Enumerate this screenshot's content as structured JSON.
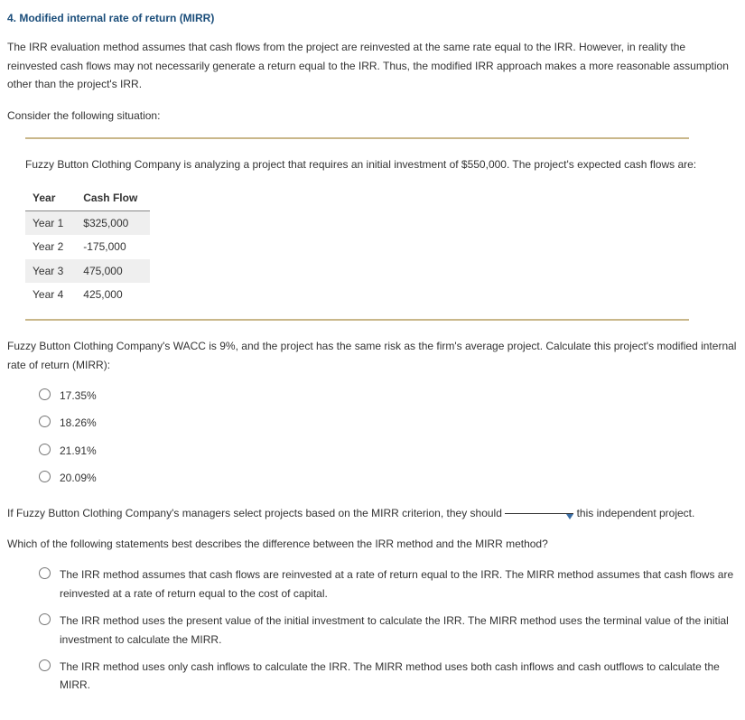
{
  "heading": "4. Modified internal rate of return (MIRR)",
  "intro_para": "The IRR evaluation method assumes that cash flows from the project are reinvested at the same rate equal to the IRR. However, in reality the reinvested cash flows may not necessarily generate a return equal to the IRR. Thus, the modified IRR approach makes a more reasonable assumption other than the project's IRR.",
  "consider": "Consider the following situation:",
  "scenario": "Fuzzy Button Clothing Company is analyzing a project that requires an initial investment of $550,000. The project's expected cash flows are:",
  "table": {
    "header_year": "Year",
    "header_cf": "Cash Flow",
    "rows": [
      {
        "year": "Year 1",
        "cf": "$325,000"
      },
      {
        "year": "Year 2",
        "cf": "-175,000"
      },
      {
        "year": "Year 3",
        "cf": "475,000"
      },
      {
        "year": "Year 4",
        "cf": "425,000"
      }
    ]
  },
  "question1": "Fuzzy Button Clothing Company's WACC is 9%, and the project has the same risk as the firm's average project. Calculate this project's modified internal rate of return (MIRR):",
  "q1_options": {
    "a": "17.35%",
    "b": "18.26%",
    "c": "21.91%",
    "d": "20.09%"
  },
  "question2_before": "If Fuzzy Button Clothing Company's managers select projects based on the MIRR criterion, they should ",
  "question2_after": " this independent project.",
  "question3": "Which of the following statements best describes the difference between the IRR method and the MIRR method?",
  "q3_options": {
    "a": "The IRR method assumes that cash flows are reinvested at a rate of return equal to the IRR. The MIRR method assumes that cash flows are reinvested at a rate of return equal to the cost of capital.",
    "b": "The IRR method uses the present value of the initial investment to calculate the IRR. The MIRR method uses the terminal value of the initial investment to calculate the MIRR.",
    "c": "The IRR method uses only cash inflows to calculate the IRR. The MIRR method uses both cash inflows and cash outflows to calculate the MIRR."
  }
}
